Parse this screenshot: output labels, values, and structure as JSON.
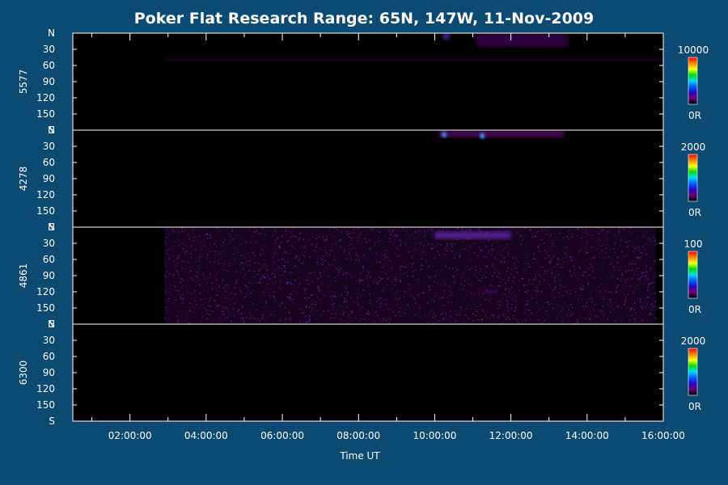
{
  "chart_data": {
    "type": "heatmap",
    "title": "Poker Flat Research Range: 65N, 147W, 11-Nov-2009",
    "xlabel": "Time UT",
    "x_ticks": [
      "02:00:00",
      "04:00:00",
      "06:00:00",
      "08:00:00",
      "10:00:00",
      "12:00:00",
      "14:00:00",
      "16:00:00"
    ],
    "x_range_hours": [
      0.5,
      16.0
    ],
    "y_ticks": [
      "N",
      "30",
      "60",
      "90",
      "120",
      "150",
      "S"
    ],
    "y_range": [
      0,
      180
    ],
    "grid": false,
    "panels": [
      {
        "name": "5577",
        "colorbar": {
          "max_label": "10000",
          "min_label": "0R"
        },
        "features": [
          {
            "kind": "band",
            "t_start": 10.2,
            "t_end": 10.4,
            "y_start": 0,
            "y_end": 12,
            "intensity": 0.6
          },
          {
            "kind": "band",
            "t_start": 11.1,
            "t_end": 13.5,
            "y_start": 0,
            "y_end": 25,
            "intensity": 0.25
          },
          {
            "kind": "band",
            "t_start": 2.9,
            "t_end": 16.0,
            "y_start": 45,
            "y_end": 52,
            "intensity": 0.12
          }
        ]
      },
      {
        "name": "4278",
        "colorbar": {
          "max_label": "2000",
          "min_label": "0R"
        },
        "features": [
          {
            "kind": "spot",
            "t": 10.25,
            "y": 8,
            "intensity": 1.0
          },
          {
            "kind": "spot",
            "t": 11.25,
            "y": 10,
            "intensity": 0.9
          },
          {
            "kind": "band",
            "t_start": 10.1,
            "t_end": 13.4,
            "y_start": 0,
            "y_end": 14,
            "intensity": 0.35
          }
        ]
      },
      {
        "name": "4861",
        "colorbar": {
          "max_label": "100",
          "min_label": "0R"
        },
        "features": [
          {
            "kind": "noise",
            "t_start": 2.9,
            "t_end": 15.8,
            "intensity": 0.45
          },
          {
            "kind": "band",
            "t_start": 10.0,
            "t_end": 12.0,
            "y_start": 8,
            "y_end": 22,
            "intensity": 0.6
          },
          {
            "kind": "band",
            "t_start": 11.3,
            "t_end": 11.6,
            "y_start": 118,
            "y_end": 122,
            "intensity": 0.5
          }
        ]
      },
      {
        "name": "6300",
        "colorbar": {
          "max_label": "2000",
          "min_label": "0R"
        },
        "features": []
      }
    ]
  },
  "colors": {
    "background": "#0b4a72",
    "plot": "#000000",
    "axis": "#ffffff",
    "colormap": [
      "#000000",
      "#6b006b",
      "#2a00c8",
      "#0060ff",
      "#00d8ff",
      "#00e000",
      "#ffff00",
      "#ff8000",
      "#ff0000"
    ]
  }
}
